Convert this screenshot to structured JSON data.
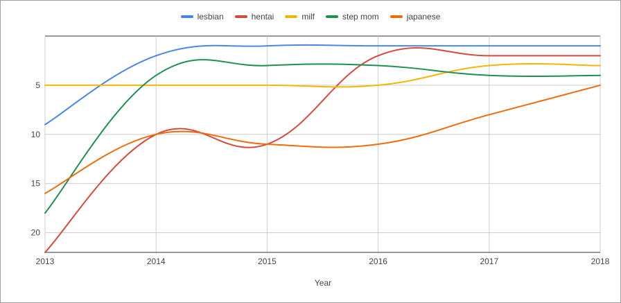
{
  "chart_data": {
    "type": "line",
    "xlabel": "Year",
    "ylabel": "",
    "x": [
      2013,
      2014,
      2015,
      2016,
      2017,
      2018
    ],
    "x_tick_labels": [
      "2013",
      "2014",
      "2015",
      "2016",
      "2017",
      "2018"
    ],
    "y_tick_labels": [
      "5",
      "10",
      "15",
      "20"
    ],
    "ylim": [
      0,
      22
    ],
    "y_reversed": true,
    "grid": true,
    "legend_position": "top",
    "series": [
      {
        "name": "lesbian",
        "color": "#4a86e8",
        "values": [
          9,
          2,
          1,
          1,
          1,
          1
        ]
      },
      {
        "name": "hentai",
        "color": "#d64a3c",
        "values": [
          22,
          10,
          11,
          2,
          2,
          2
        ]
      },
      {
        "name": "milf",
        "color": "#f2b705",
        "values": [
          5,
          5,
          5,
          5,
          3,
          3
        ]
      },
      {
        "name": "step mom",
        "color": "#1e8f4e",
        "values": [
          18,
          4,
          3,
          3,
          4,
          4
        ]
      },
      {
        "name": "japanese",
        "color": "#ef6c0c",
        "values": [
          16,
          10,
          11,
          11,
          8,
          5
        ]
      }
    ]
  }
}
